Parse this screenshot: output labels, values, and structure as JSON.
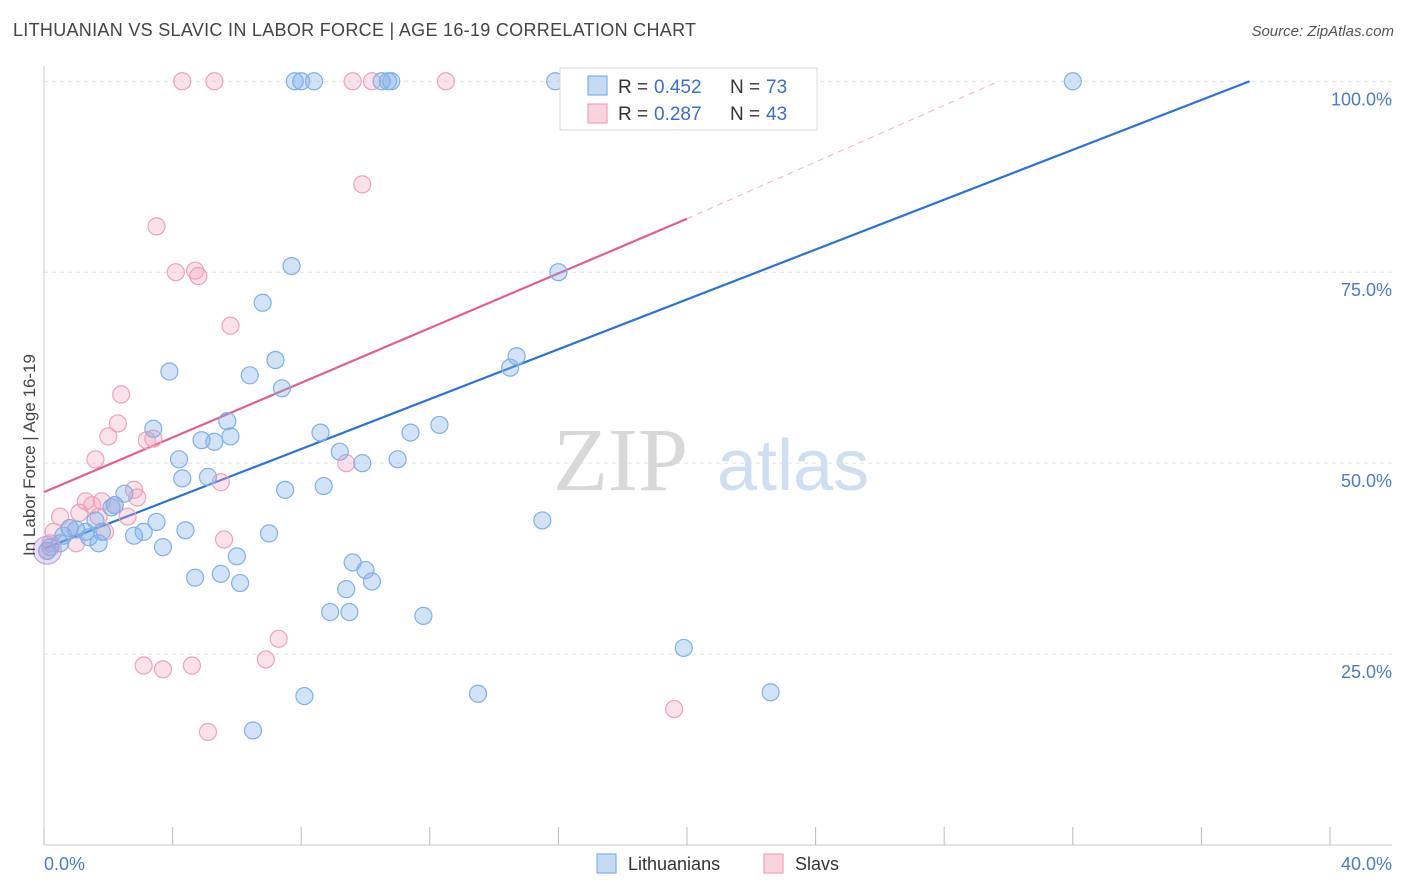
{
  "header": {
    "title": "LITHUANIAN VS SLAVIC IN LABOR FORCE | AGE 16-19 CORRELATION CHART",
    "source": "Source: ZipAtlas.com"
  },
  "watermark": {
    "zip": "ZIP",
    "atlas": "atlas"
  },
  "chart_data": {
    "type": "scatter",
    "ylabel": "In Labor Force | Age 16-19",
    "xlim": [
      0,
      40
    ],
    "ylim": [
      0,
      102
    ],
    "x_tick_labels": {
      "min": "0.0%",
      "max": "40.0%"
    },
    "y_ticks": [
      {
        "value": 25,
        "label": "25.0%"
      },
      {
        "value": 50,
        "label": "50.0%"
      },
      {
        "value": 75,
        "label": "75.0%"
      },
      {
        "value": 100,
        "label": "100.0%"
      }
    ],
    "grid": true,
    "legend_position": "top-center",
    "series": [
      {
        "name": "Lithuanians",
        "color": "#7fb0e8",
        "fill": "rgba(127,176,232,0.35)",
        "line_color": "#2d74cf",
        "r_label": "R =",
        "r_value": "0.452",
        "n_label": "N =",
        "n_value": "73",
        "trend": {
          "x0": 0,
          "y0": 38.8,
          "x1": 37.5,
          "y1": 100
        },
        "points": [
          [
            0.2,
            39.0
          ],
          [
            0.5,
            39.5
          ],
          [
            0.6,
            40.5
          ],
          [
            0.8,
            41.5
          ],
          [
            1.0,
            41.3
          ],
          [
            1.3,
            41.0
          ],
          [
            1.4,
            40.3
          ],
          [
            1.6,
            42.5
          ],
          [
            1.7,
            39.5
          ],
          [
            1.8,
            41.0
          ],
          [
            2.1,
            44.2
          ],
          [
            2.2,
            44.5
          ],
          [
            2.5,
            46.0
          ],
          [
            2.8,
            40.5
          ],
          [
            3.1,
            41.0
          ],
          [
            3.4,
            54.5
          ],
          [
            3.5,
            42.3
          ],
          [
            3.7,
            39.0
          ],
          [
            3.9,
            62.0
          ],
          [
            4.2,
            50.5
          ],
          [
            4.3,
            48.0
          ],
          [
            4.4,
            41.2
          ],
          [
            4.7,
            35.0
          ],
          [
            4.9,
            53.0
          ],
          [
            5.1,
            48.2
          ],
          [
            5.3,
            52.8
          ],
          [
            5.5,
            35.5
          ],
          [
            5.7,
            55.5
          ],
          [
            5.8,
            53.5
          ],
          [
            6.0,
            37.8
          ],
          [
            6.1,
            34.3
          ],
          [
            6.4,
            61.5
          ],
          [
            6.5,
            15.0
          ],
          [
            6.8,
            71.0
          ],
          [
            7.0,
            40.8
          ],
          [
            7.2,
            63.5
          ],
          [
            7.4,
            59.8
          ],
          [
            7.5,
            46.5
          ],
          [
            7.7,
            75.8
          ],
          [
            7.8,
            100.0
          ],
          [
            8.0,
            100.0
          ],
          [
            8.1,
            19.5
          ],
          [
            8.4,
            100.0
          ],
          [
            8.6,
            54.0
          ],
          [
            8.7,
            47.0
          ],
          [
            8.9,
            30.5
          ],
          [
            9.2,
            51.5
          ],
          [
            9.4,
            33.5
          ],
          [
            9.5,
            30.5
          ],
          [
            9.6,
            37.0
          ],
          [
            9.9,
            50.0
          ],
          [
            10.0,
            36.0
          ],
          [
            10.2,
            34.5
          ],
          [
            10.5,
            100.0
          ],
          [
            10.7,
            100.0
          ],
          [
            10.8,
            100.0
          ],
          [
            11.0,
            50.5
          ],
          [
            11.4,
            54.0
          ],
          [
            11.8,
            30.0
          ],
          [
            12.3,
            55.0
          ],
          [
            13.5,
            19.8
          ],
          [
            14.5,
            62.5
          ],
          [
            14.7,
            64.0
          ],
          [
            15.5,
            42.5
          ],
          [
            15.9,
            100.0
          ],
          [
            16.0,
            75.0
          ],
          [
            19.0,
            100.0
          ],
          [
            19.9,
            25.8
          ],
          [
            20.1,
            100.0
          ],
          [
            22.5,
            100.0
          ],
          [
            22.6,
            20.0
          ],
          [
            32.0,
            100.0
          ],
          [
            0.1,
            38.5
          ]
        ]
      },
      {
        "name": "Slavs",
        "color": "#f2a0b8",
        "fill": "rgba(242,160,184,0.30)",
        "line_color": "#e0608c",
        "r_label": "R =",
        "r_value": "0.287",
        "n_label": "N =",
        "n_value": "43",
        "trend": {
          "x0": 0,
          "y0": 46.2,
          "x1": 20.0,
          "y1": 82.0
        },
        "trend_ext": {
          "x0": 20.0,
          "y0": 82.0,
          "x1": 29.7,
          "y1": 100.0
        },
        "points": [
          [
            0.1,
            38.5
          ],
          [
            0.2,
            39.5
          ],
          [
            0.3,
            41.0
          ],
          [
            0.5,
            43.0
          ],
          [
            0.8,
            41.5
          ],
          [
            1.0,
            39.5
          ],
          [
            1.1,
            43.5
          ],
          [
            1.3,
            45.0
          ],
          [
            1.5,
            44.5
          ],
          [
            1.6,
            50.5
          ],
          [
            1.7,
            43.0
          ],
          [
            1.8,
            45.0
          ],
          [
            1.9,
            41.0
          ],
          [
            2.0,
            53.5
          ],
          [
            2.2,
            44.5
          ],
          [
            2.3,
            55.2
          ],
          [
            2.4,
            59.0
          ],
          [
            2.6,
            43.0
          ],
          [
            2.8,
            46.5
          ],
          [
            2.9,
            45.5
          ],
          [
            3.1,
            23.5
          ],
          [
            3.2,
            53.0
          ],
          [
            3.4,
            53.2
          ],
          [
            3.5,
            81.0
          ],
          [
            3.7,
            23.0
          ],
          [
            4.1,
            75.0
          ],
          [
            4.3,
            100.0
          ],
          [
            4.6,
            23.5
          ],
          [
            4.7,
            75.2
          ],
          [
            4.8,
            74.5
          ],
          [
            5.1,
            14.8
          ],
          [
            5.3,
            100.0
          ],
          [
            5.5,
            47.5
          ],
          [
            5.6,
            40.0
          ],
          [
            5.8,
            68.0
          ],
          [
            6.9,
            24.3
          ],
          [
            7.3,
            27.0
          ],
          [
            9.4,
            50.0
          ],
          [
            9.6,
            100.0
          ],
          [
            9.9,
            86.5
          ],
          [
            10.2,
            100.0
          ],
          [
            12.5,
            100.0
          ],
          [
            19.6,
            17.8
          ]
        ]
      }
    ]
  }
}
